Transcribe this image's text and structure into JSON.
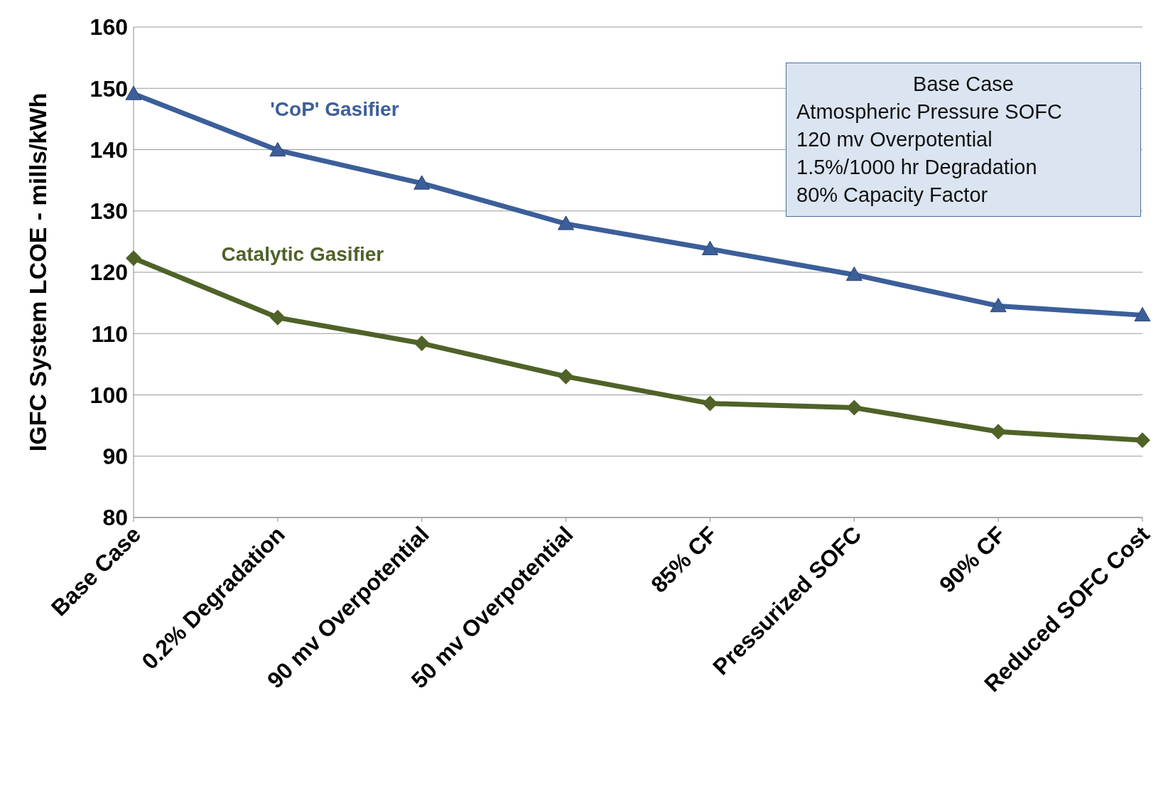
{
  "chart_data": {
    "type": "line",
    "ylabel": "IGFC System LCOE - mills/kWh",
    "categories": [
      "Base Case",
      "0.2% Degradation",
      "90 mv Overpotential",
      "50 mv Overpotential",
      "85% CF",
      "Pressurized SOFC",
      "90% CF",
      "Reduced SOFC Cost"
    ],
    "series": [
      {
        "name": "'CoP' Gasifier",
        "color": "#3c5f9a",
        "marker": "triangle",
        "values": [
          149.1,
          139.9,
          134.5,
          127.9,
          123.8,
          119.6,
          114.5,
          113
        ]
      },
      {
        "name": "Catalytic Gasifier",
        "color": "#4f6228",
        "marker": "diamond",
        "values": [
          122.3,
          112.6,
          108.4,
          103,
          98.6,
          97.9,
          94,
          92.6
        ]
      }
    ],
    "ylim": [
      80,
      160
    ],
    "yticks": [
      80,
      90,
      100,
      110,
      120,
      130,
      140,
      150,
      160
    ],
    "grid": "y",
    "annotations": [
      "Base Case",
      "Atmospheric Pressure SOFC",
      "120 mv Overpotential",
      "1.5%/1000 hr Degradation",
      "80% Capacity Factor"
    ]
  }
}
